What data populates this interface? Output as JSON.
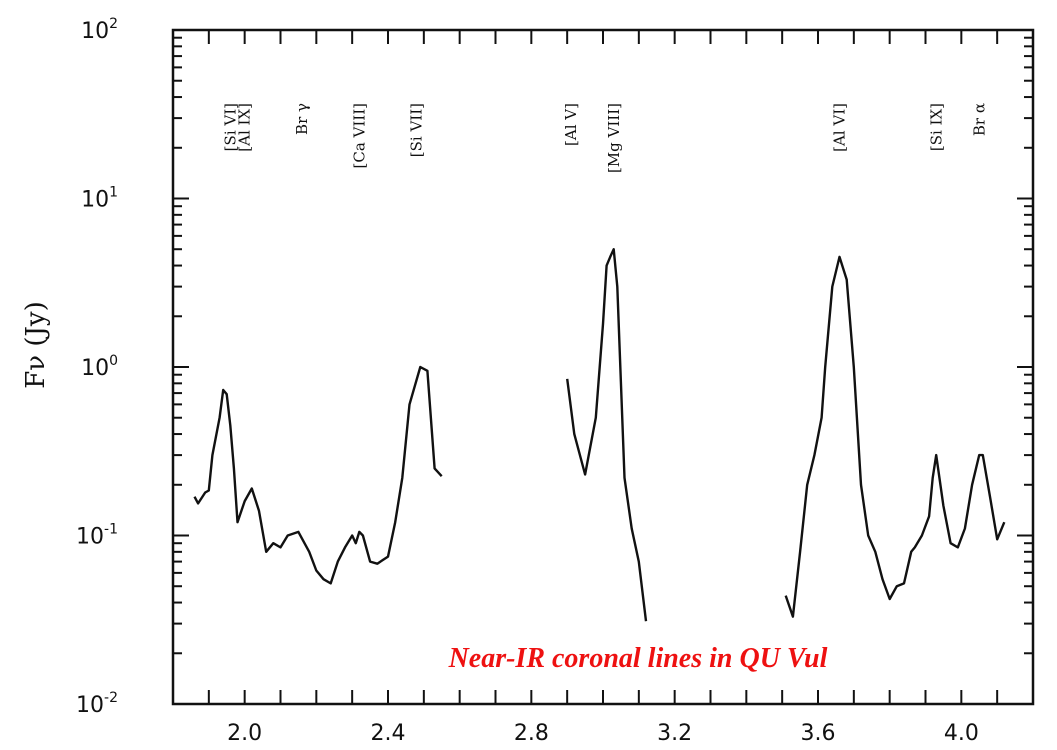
{
  "chart_data": {
    "type": "line",
    "title": "",
    "xlabel": "",
    "ylabel": "Fν (Jy)",
    "xlim": [
      1.8,
      4.2
    ],
    "ylim": [
      0.01,
      100
    ],
    "yscale": "log",
    "x_ticks": [
      "2.0",
      "2.4",
      "2.8",
      "3.2",
      "3.6",
      "4.0"
    ],
    "y_ticks": [
      {
        "base": "10",
        "exp": "-2",
        "value": 0.01
      },
      {
        "base": "10",
        "exp": "-1",
        "value": 0.1
      },
      {
        "base": "10",
        "exp": "0",
        "value": 1
      },
      {
        "base": "10",
        "exp": "1",
        "value": 10
      },
      {
        "base": "10",
        "exp": "2",
        "value": 100
      }
    ],
    "annotation": "Near-IR coronal lines in QU Vul",
    "annotation_color": "#ee1111",
    "line_color": "#111111",
    "line_labels": [
      {
        "text": "[Si VI]",
        "x": 1.96
      },
      {
        "text": "[Al IX]",
        "x": 2.0
      },
      {
        "text": "Br γ",
        "x": 2.16
      },
      {
        "text": "[Ca VIII]",
        "x": 2.32
      },
      {
        "text": "[Si VII]",
        "x": 2.48
      },
      {
        "text": "[Al V]",
        "x": 2.91
      },
      {
        "text": "[Mg VIII]",
        "x": 3.03
      },
      {
        "text": "[Al VI]",
        "x": 3.66
      },
      {
        "text": "[Si IX]",
        "x": 3.93
      },
      {
        "text": "Br α",
        "x": 4.05
      }
    ],
    "series": [
      {
        "x": [
          1.86,
          1.87,
          1.89,
          1.9,
          1.91,
          1.93,
          1.94,
          1.95,
          1.96,
          1.97,
          1.98,
          2.0,
          2.02,
          2.04,
          2.06,
          2.08,
          2.1,
          2.12,
          2.15,
          2.18,
          2.2,
          2.22,
          2.24,
          2.26,
          2.28,
          2.3,
          2.31,
          2.32,
          2.33,
          2.35,
          2.37,
          2.4,
          2.42,
          2.44,
          2.46,
          2.49,
          2.51,
          2.53,
          2.55
        ],
        "y": [
          0.17,
          0.155,
          0.18,
          0.185,
          0.3,
          0.5,
          0.73,
          0.69,
          0.45,
          0.25,
          0.12,
          0.16,
          0.19,
          0.14,
          0.08,
          0.09,
          0.085,
          0.1,
          0.105,
          0.08,
          0.062,
          0.055,
          0.052,
          0.07,
          0.085,
          0.1,
          0.09,
          0.105,
          0.1,
          0.07,
          0.068,
          0.075,
          0.12,
          0.22,
          0.6,
          1.0,
          0.95,
          0.25,
          0.225
        ]
      },
      {
        "x": [
          2.9,
          2.92,
          2.95,
          2.98,
          3.0,
          3.01,
          3.02,
          3.03,
          3.04,
          3.06,
          3.08,
          3.1,
          3.12
        ],
        "y": [
          0.85,
          0.4,
          0.23,
          0.5,
          1.8,
          4.0,
          4.5,
          5.0,
          3.0,
          0.22,
          0.11,
          0.07,
          0.031
        ]
      },
      {
        "x": [
          3.51,
          3.53,
          3.55,
          3.57,
          3.59,
          3.61,
          3.62,
          3.64,
          3.66,
          3.68,
          3.7,
          3.72,
          3.74,
          3.76,
          3.78,
          3.8,
          3.82,
          3.84,
          3.86,
          3.87,
          3.89,
          3.91,
          3.92,
          3.93,
          3.95,
          3.97,
          3.99,
          4.01,
          4.03,
          4.05,
          4.06,
          4.08,
          4.1,
          4.12
        ],
        "y": [
          0.044,
          0.033,
          0.08,
          0.2,
          0.3,
          0.5,
          1.0,
          3.0,
          4.5,
          3.3,
          1.0,
          0.2,
          0.1,
          0.08,
          0.055,
          0.042,
          0.05,
          0.052,
          0.08,
          0.085,
          0.1,
          0.13,
          0.22,
          0.3,
          0.15,
          0.09,
          0.085,
          0.11,
          0.2,
          0.3,
          0.3,
          0.17,
          0.095,
          0.12
        ]
      }
    ]
  }
}
